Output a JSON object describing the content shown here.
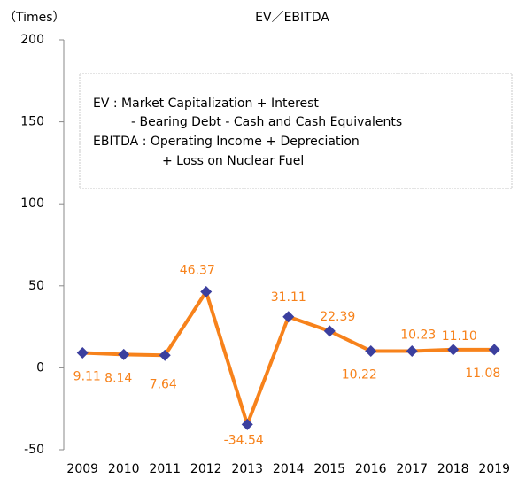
{
  "chart_data": {
    "type": "line",
    "title": "EV／EBITDA",
    "y_label": "（Times）",
    "annotations": [
      "EV : Market Capitalization + Interest",
      "- Bearing Debt - Cash and Cash Equivalents",
      "EBITDA : Operating Income + Depreciation",
      "+ Loss on Nuclear  Fuel"
    ],
    "categories": [
      "2009",
      "2010",
      "2011",
      "2012",
      "2013",
      "2014",
      "2015",
      "2016",
      "2017",
      "2018",
      "2019"
    ],
    "series": [
      {
        "name": "EV／EBITDA",
        "color": "#f7821b",
        "marker_color": "#3b3f9e",
        "values": [
          9.11,
          8.14,
          7.64,
          46.37,
          -34.54,
          31.11,
          22.39,
          10.22,
          10.23,
          11.1,
          11.08
        ],
        "value_labels": [
          "9.11",
          "8.14",
          "7.64",
          "46.37",
          "-34.54",
          "31.11",
          "22.39",
          "10.22",
          "10.23",
          "11.10",
          "11.08"
        ]
      }
    ],
    "ylim": [
      -50,
      200
    ],
    "yticks": [
      -50,
      0,
      50,
      100,
      150,
      200
    ],
    "grid": false
  }
}
